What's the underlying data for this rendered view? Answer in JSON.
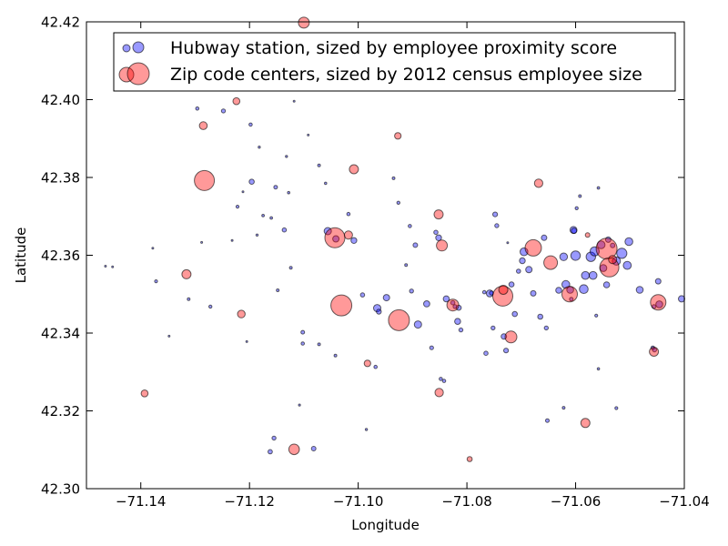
{
  "chart_data": {
    "type": "scatter",
    "xlabel": "Longitude",
    "ylabel": "Latitude",
    "xlim": [
      -71.15,
      -71.04
    ],
    "ylim": [
      42.3,
      42.42
    ],
    "x_ticks": [
      -71.14,
      -71.12,
      -71.1,
      -71.08,
      -71.06,
      -71.04
    ],
    "x_tick_labels": [
      "−71.14",
      "−71.12",
      "−71.10",
      "−71.08",
      "−71.06",
      "−71.04"
    ],
    "y_ticks": [
      42.3,
      42.32,
      42.34,
      42.36,
      42.38,
      42.4,
      42.42
    ],
    "y_tick_labels": [
      "42.30",
      "42.32",
      "42.34",
      "42.36",
      "42.38",
      "42.40",
      "42.42"
    ],
    "grid": false,
    "legend_position": "top",
    "series": [
      {
        "name": "Hubway station, sized by employee proximity score",
        "color": "#0000ff",
        "points": [
          [
            -71.1465,
            42.3572,
            1
          ],
          [
            -71.1452,
            42.357,
            1
          ],
          [
            -71.1378,
            42.3618,
            1
          ],
          [
            -71.1372,
            42.3533,
            1.6
          ],
          [
            -71.1348,
            42.3392,
            1
          ],
          [
            -71.1312,
            42.3487,
            1.5
          ],
          [
            -71.1296,
            42.3977,
            1.8
          ],
          [
            -71.1288,
            42.3633,
            1
          ],
          [
            -71.1272,
            42.3468,
            1.7
          ],
          [
            -71.1248,
            42.3971,
            2.2
          ],
          [
            -71.1232,
            42.3638,
            1
          ],
          [
            -71.1222,
            42.3725,
            1.6
          ],
          [
            -71.1212,
            42.3763,
            1
          ],
          [
            -71.1205,
            42.3378,
            1
          ],
          [
            -71.1198,
            42.3936,
            1.8
          ],
          [
            -71.1196,
            42.3789,
            2.8
          ],
          [
            -71.1186,
            42.3652,
            1.2
          ],
          [
            -71.1182,
            42.3878,
            1.2
          ],
          [
            -71.1175,
            42.3702,
            1.4
          ],
          [
            -71.116,
            42.3696,
            1.4
          ],
          [
            -71.1152,
            42.3775,
            2
          ],
          [
            -71.1148,
            42.351,
            1.5
          ],
          [
            -71.1136,
            42.3665,
            2.3
          ],
          [
            -71.1132,
            42.3854,
            1.2
          ],
          [
            -71.1128,
            42.3761,
            1.3
          ],
          [
            -71.1124,
            42.3568,
            1.5
          ],
          [
            -71.1118,
            42.3996,
            1
          ],
          [
            -71.1108,
            42.3215,
            1.1
          ],
          [
            -71.1102,
            42.3402,
            2
          ],
          [
            -71.1092,
            42.3909,
            1
          ],
          [
            -71.1072,
            42.3831,
            1.5
          ],
          [
            -71.106,
            42.3785,
            1.3
          ],
          [
            -71.1056,
            42.3662,
            4
          ],
          [
            -71.1041,
            42.3642,
            3.5
          ],
          [
            -71.1018,
            42.3706,
            1.8
          ],
          [
            -71.1008,
            42.3638,
            3.2
          ],
          [
            -71.0992,
            42.3498,
            2.3
          ],
          [
            -71.0965,
            42.3464,
            4
          ],
          [
            -71.0962,
            42.3455,
            2.7
          ],
          [
            -71.0948,
            42.3491,
            3.5
          ],
          [
            -71.0935,
            42.3798,
            1.5
          ],
          [
            -71.0926,
            42.3735,
            1.7
          ],
          [
            -71.0902,
            42.3508,
            2.2
          ],
          [
            -71.0895,
            42.3626,
            2.5
          ],
          [
            -71.089,
            42.3422,
            4
          ],
          [
            -71.0874,
            42.3475,
            3.4
          ],
          [
            -71.0865,
            42.3362,
            2.1
          ],
          [
            -71.0857,
            42.3659,
            2.3
          ],
          [
            -71.0848,
            42.3282,
            1.8
          ],
          [
            -71.0842,
            42.3277,
            1.8
          ],
          [
            -71.0838,
            42.3488,
            3.3
          ],
          [
            -71.0826,
            42.3478,
            2.3
          ],
          [
            -71.0822,
            42.3468,
            2.1
          ],
          [
            -71.0817,
            42.343,
            3.3
          ],
          [
            -71.0815,
            42.3465,
            2.8
          ],
          [
            -71.0811,
            42.3408,
            2.2
          ],
          [
            -71.0765,
            42.3348,
            2.3
          ],
          [
            -71.0758,
            42.3502,
            3.8
          ],
          [
            -71.0755,
            42.3503,
            2.2
          ],
          [
            -71.0752,
            42.3413,
            2.2
          ],
          [
            -71.0748,
            42.3705,
            2.6
          ],
          [
            -71.0745,
            42.3676,
            2.2
          ],
          [
            -71.0732,
            42.3391,
            3
          ],
          [
            -71.0728,
            42.3355,
            2.6
          ],
          [
            -71.0718,
            42.3525,
            2.8
          ],
          [
            -71.0712,
            42.3449,
            2.8
          ],
          [
            -71.0705,
            42.3559,
            2.3
          ],
          [
            -71.0698,
            42.3586,
            3.2
          ],
          [
            -71.0695,
            42.3609,
            4.3
          ],
          [
            -71.0686,
            42.3563,
            3.5
          ],
          [
            -71.0665,
            42.3442,
            2.8
          ],
          [
            -71.0654,
            42.3413,
            2.2
          ],
          [
            -71.0631,
            42.351,
            3.3
          ],
          [
            -71.0622,
            42.3596,
            4.2
          ],
          [
            -71.0618,
            42.3525,
            4.3
          ],
          [
            -71.061,
            42.3511,
            3.8
          ],
          [
            -71.0608,
            42.3487,
            2
          ],
          [
            -71.0604,
            42.3665,
            3.8
          ],
          [
            -71.0603,
            42.3663,
            3
          ],
          [
            -71.06,
            42.3599,
            5.2
          ],
          [
            -71.0598,
            42.3721,
            1.7
          ],
          [
            -71.0592,
            42.3752,
            1.5
          ],
          [
            -71.0585,
            42.3513,
            4.8
          ],
          [
            -71.0582,
            42.3548,
            4.3
          ],
          [
            -71.0572,
            42.3596,
            5.2
          ],
          [
            -71.0568,
            42.3548,
            4.3
          ],
          [
            -71.0565,
            42.361,
            5
          ],
          [
            -71.0558,
            42.3773,
            1.4
          ],
          [
            -71.0553,
            42.3627,
            4.3
          ],
          [
            -71.0549,
            42.3567,
            3.8
          ],
          [
            -71.0543,
            42.3524,
            3.3
          ],
          [
            -71.054,
            42.364,
            3
          ],
          [
            -71.0532,
            42.3625,
            2.5
          ],
          [
            -71.0525,
            42.3585,
            4.5
          ],
          [
            -71.0515,
            42.3605,
            5.6
          ],
          [
            -71.0505,
            42.3574,
            4.4
          ],
          [
            -71.0502,
            42.3635,
            4.3
          ],
          [
            -71.0482,
            42.3511,
            3.8
          ],
          [
            -71.0456,
            42.3468,
            2.2
          ],
          [
            -71.0448,
            42.3533,
            3
          ],
          [
            -71.0446,
            42.3474,
            3.8
          ],
          [
            -71.0405,
            42.3488,
            3.5
          ],
          [
            -71.0562,
            42.3445,
            1.6
          ],
          [
            -71.0558,
            42.3308,
            1.3
          ],
          [
            -71.0525,
            42.3207,
            1.6
          ],
          [
            -71.0458,
            42.3362,
            2
          ],
          [
            -71.0455,
            42.3357,
            2.3
          ],
          [
            -71.0652,
            42.3175,
            2
          ],
          [
            -71.0622,
            42.3208,
            1.5
          ],
          [
            -71.1155,
            42.313,
            2.2
          ],
          [
            -71.1162,
            42.3095,
            2.4
          ],
          [
            -71.1082,
            42.3103,
            2.5
          ],
          [
            -71.0968,
            42.3313,
            1.8
          ],
          [
            -71.1102,
            42.3373,
            1.8
          ],
          [
            -71.0905,
            42.3675,
            1.8
          ],
          [
            -71.0912,
            42.3575,
            1.5
          ],
          [
            -71.1042,
            42.3342,
            1.5
          ],
          [
            -71.0985,
            42.3152,
            1.2
          ],
          [
            -71.0852,
            42.3645,
            3.2
          ],
          [
            -71.0768,
            42.3505,
            1.8
          ],
          [
            -71.0678,
            42.3502,
            3
          ],
          [
            -71.0658,
            42.3645,
            3
          ],
          [
            -71.0725,
            42.3632,
            1
          ],
          [
            -71.1072,
            42.3371,
            1.5
          ]
        ]
      },
      {
        "name": "Zip code centers, sized by 2012 census employee size",
        "color": "#ff0000",
        "points": [
          [
            -71.11,
            42.4198,
            6
          ],
          [
            -71.1224,
            42.3996,
            3.8
          ],
          [
            -71.1285,
            42.3933,
            4.3
          ],
          [
            -71.1283,
            42.3792,
            11
          ],
          [
            -71.1316,
            42.3551,
            5
          ],
          [
            -71.1215,
            42.3449,
            4.2
          ],
          [
            -71.1393,
            42.3245,
            3.8
          ],
          [
            -71.1118,
            42.3101,
            5.8
          ],
          [
            -71.1043,
            42.3645,
            11
          ],
          [
            -71.1018,
            42.3652,
            4.5
          ],
          [
            -71.1008,
            42.3821,
            5
          ],
          [
            -71.1031,
            42.3471,
            11.5
          ],
          [
            -71.0925,
            42.3433,
            11.5
          ],
          [
            -71.0927,
            42.3907,
            3.6
          ],
          [
            -71.0983,
            42.3322,
            3.6
          ],
          [
            -71.0852,
            42.3705,
            5
          ],
          [
            -71.0846,
            42.3625,
            6
          ],
          [
            -71.0826,
            42.3472,
            6.5
          ],
          [
            -71.0851,
            42.3247,
            4.6
          ],
          [
            -71.0795,
            42.3076,
            2.8
          ],
          [
            -71.0734,
            42.3495,
            11
          ],
          [
            -71.0733,
            42.3511,
            5
          ],
          [
            -71.0719,
            42.339,
            6.5
          ],
          [
            -71.0668,
            42.3785,
            4.6
          ],
          [
            -71.0678,
            42.3619,
            9
          ],
          [
            -71.0646,
            42.3581,
            7.5
          ],
          [
            -71.0611,
            42.35,
            8.5
          ],
          [
            -71.0578,
            42.3652,
            2.5
          ],
          [
            -71.0543,
            42.3617,
            11.5
          ],
          [
            -71.0538,
            42.3569,
            10.5
          ],
          [
            -71.0532,
            42.3589,
            4.5
          ],
          [
            -71.0582,
            42.3169,
            5
          ],
          [
            -71.0448,
            42.3479,
            8.5
          ],
          [
            -71.0456,
            42.3352,
            5
          ]
        ]
      }
    ]
  }
}
